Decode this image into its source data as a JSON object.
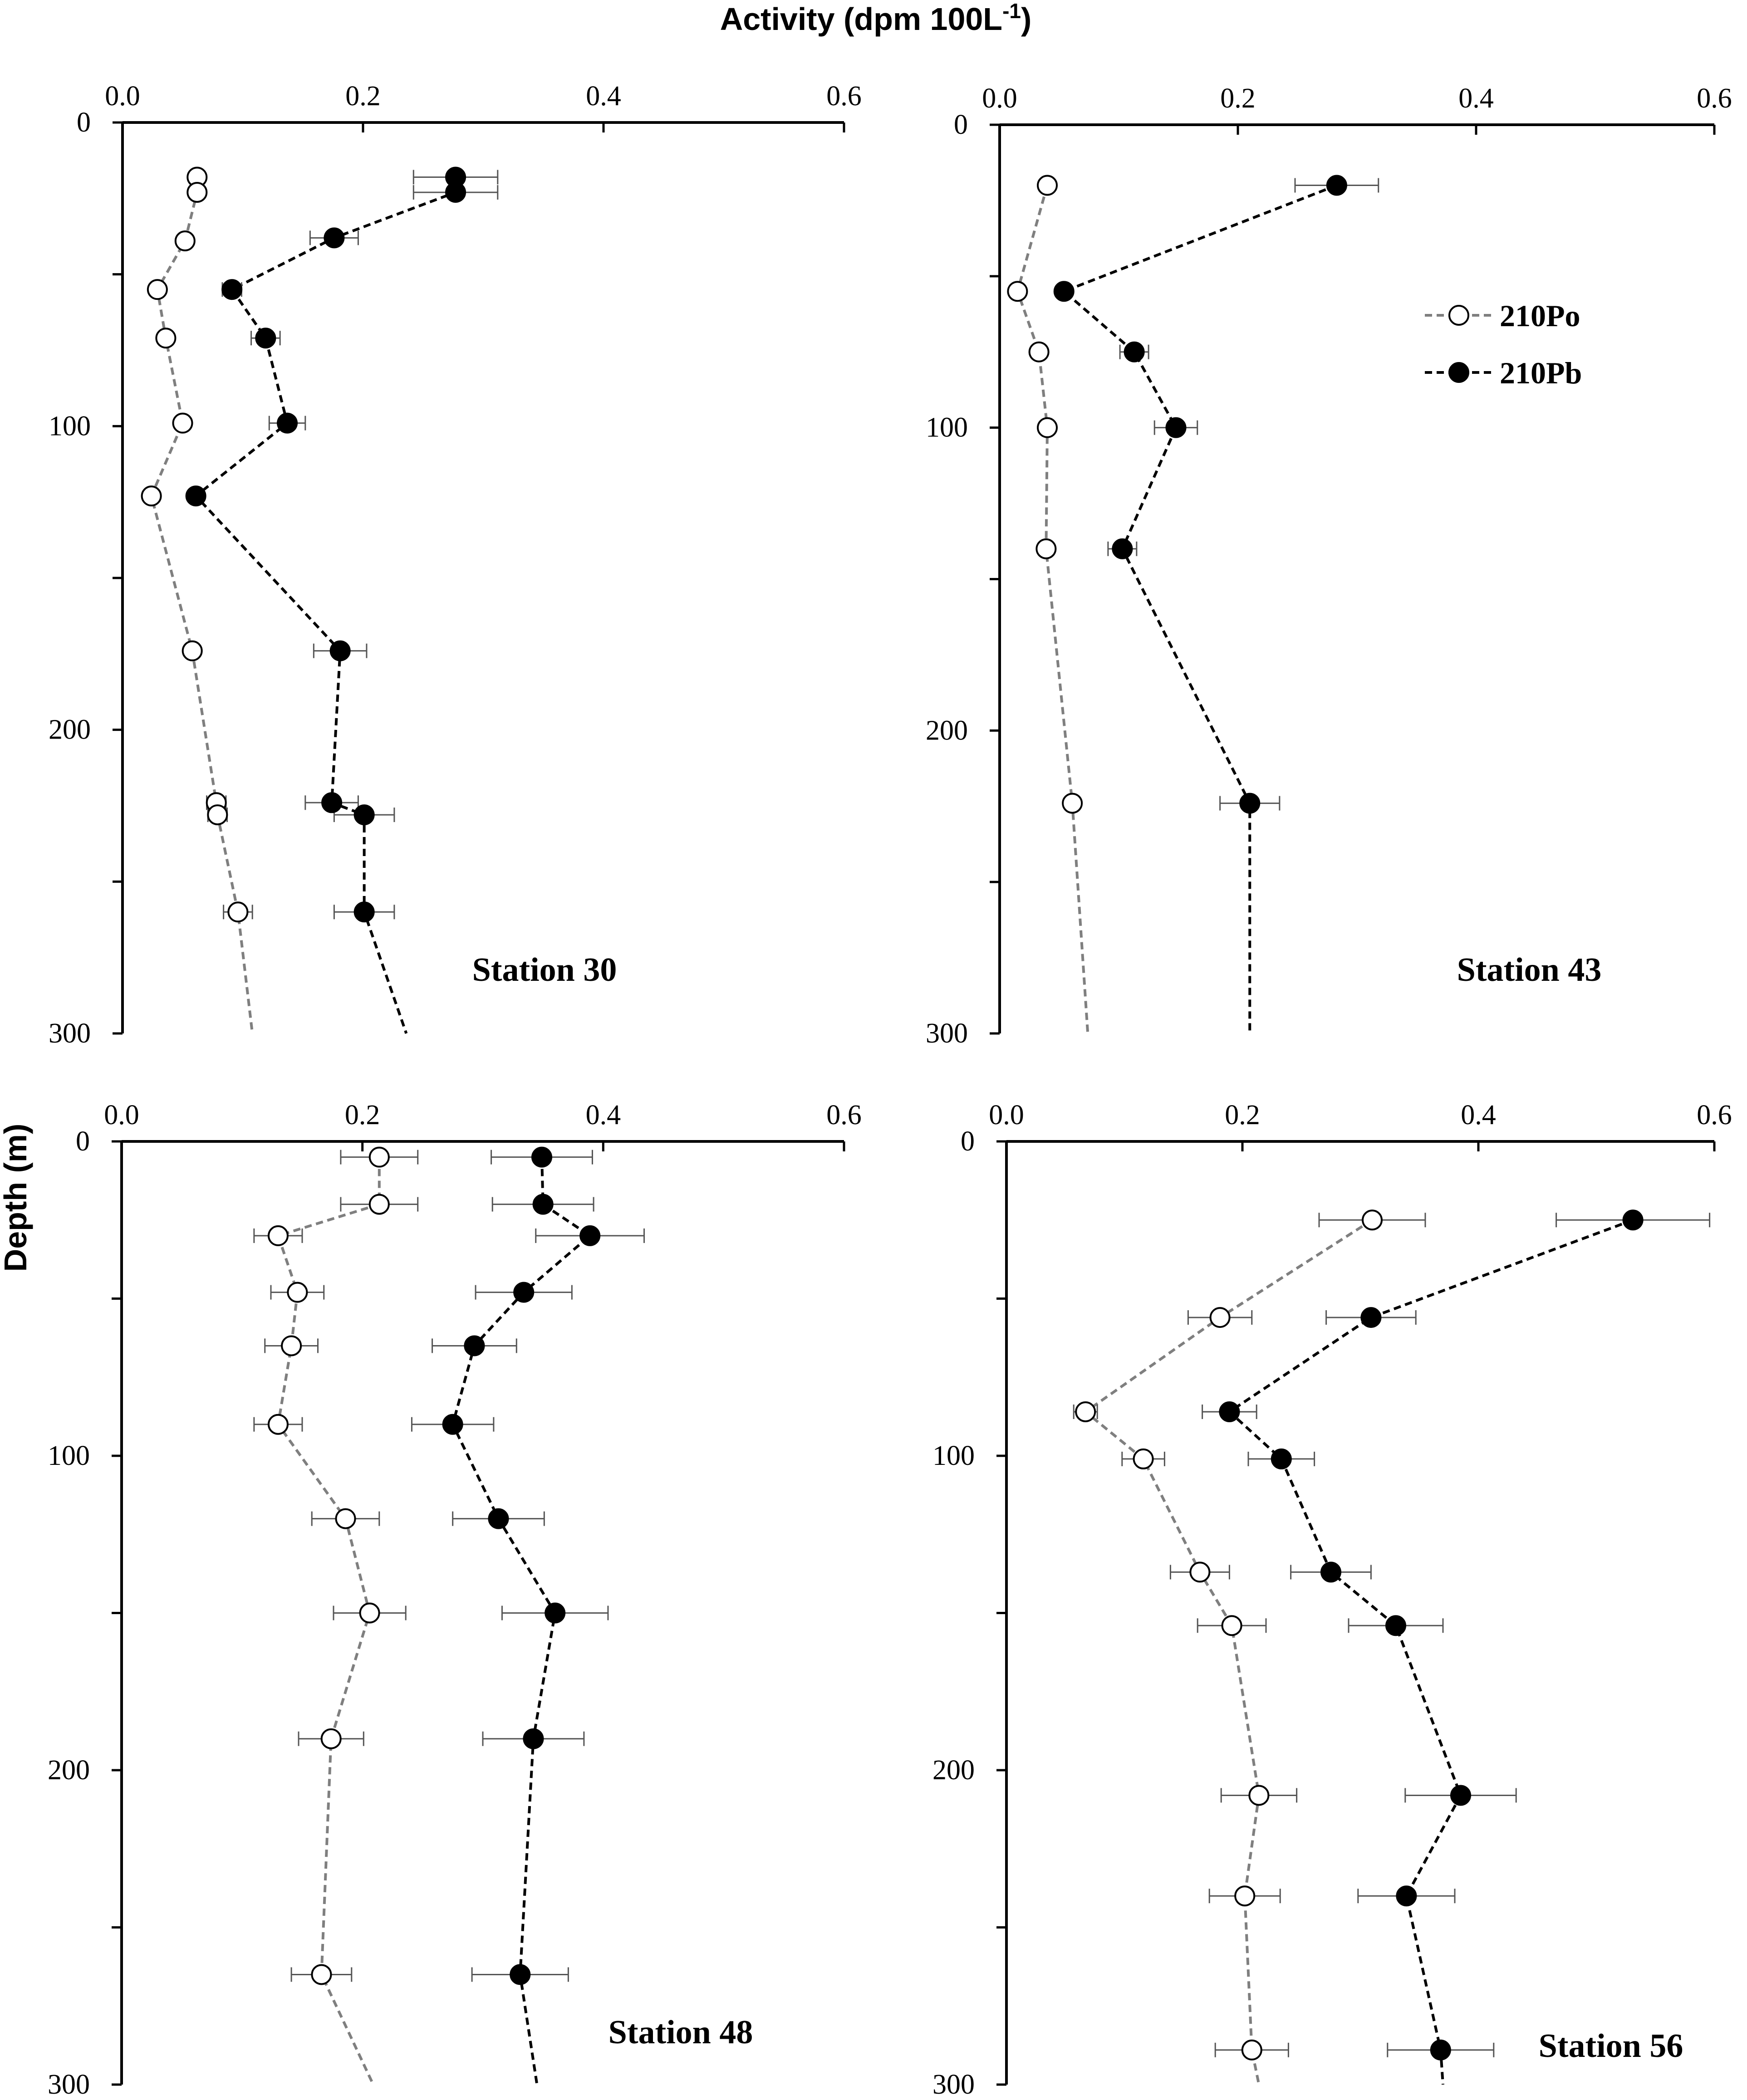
{
  "figure": {
    "x_axis_title": "Activity (dpm 100L",
    "x_axis_title_sup": "-1",
    "x_axis_title_end": ")",
    "y_axis_title": "Depth (m)"
  },
  "legend": {
    "items": [
      {
        "label": "210Po",
        "marker": "open-circle",
        "line_color": "#7f7f7f"
      },
      {
        "label": "210Pb",
        "marker": "filled-circle",
        "line_color": "#000000"
      }
    ]
  },
  "chart_data": [
    {
      "type": "scatter",
      "station": "Station 30",
      "x_ticks": [
        "0.0",
        "0.2",
        "0.4",
        "0.6"
      ],
      "y_ticks": [
        "0",
        "100",
        "200",
        "300"
      ],
      "xlim": [
        0,
        0.6
      ],
      "ylim": [
        0,
        300
      ],
      "y_inverted": true,
      "series": [
        {
          "name": "210Po",
          "points": [
            {
              "x": 0.062,
              "y": 18,
              "err": 0.005
            },
            {
              "x": 0.062,
              "y": 23,
              "err": 0.005
            },
            {
              "x": 0.052,
              "y": 39,
              "err": 0
            },
            {
              "x": 0.029,
              "y": 55,
              "err": 0
            },
            {
              "x": 0.036,
              "y": 71,
              "err": 0
            },
            {
              "x": 0.05,
              "y": 99,
              "err": 0
            },
            {
              "x": 0.024,
              "y": 123,
              "err": 0
            },
            {
              "x": 0.058,
              "y": 174,
              "err": 0
            },
            {
              "x": 0.078,
              "y": 224,
              "err": 0.008
            },
            {
              "x": 0.079,
              "y": 228,
              "err": 0.008
            },
            {
              "x": 0.096,
              "y": 260,
              "err": 0.012
            }
          ],
          "trend_end": {
            "x": 0.108,
            "y": 300
          }
        },
        {
          "name": "210Pb",
          "points": [
            {
              "x": 0.277,
              "y": 18,
              "err": 0.035
            },
            {
              "x": 0.277,
              "y": 23,
              "err": 0.035
            },
            {
              "x": 0.176,
              "y": 38,
              "err": 0.02
            },
            {
              "x": 0.091,
              "y": 55,
              "err": 0.008
            },
            {
              "x": 0.119,
              "y": 71,
              "err": 0.012
            },
            {
              "x": 0.137,
              "y": 99,
              "err": 0.015
            },
            {
              "x": 0.061,
              "y": 123,
              "err": 0
            },
            {
              "x": 0.181,
              "y": 174,
              "err": 0.022
            },
            {
              "x": 0.174,
              "y": 224,
              "err": 0.022
            },
            {
              "x": 0.201,
              "y": 228,
              "err": 0.025
            },
            {
              "x": 0.201,
              "y": 260,
              "err": 0.025
            }
          ],
          "trend_end": {
            "x": 0.236,
            "y": 300
          }
        }
      ]
    },
    {
      "type": "scatter",
      "station": "Station 43",
      "x_ticks": [
        "0.0",
        "0.2",
        "0.4",
        "0.6"
      ],
      "y_ticks": [
        "0",
        "100",
        "200",
        "300"
      ],
      "xlim": [
        0,
        0.6
      ],
      "ylim": [
        0,
        300
      ],
      "y_inverted": true,
      "series": [
        {
          "name": "210Po",
          "points": [
            {
              "x": 0.04,
              "y": 20,
              "err": 0
            },
            {
              "x": 0.015,
              "y": 55,
              "err": 0
            },
            {
              "x": 0.033,
              "y": 75,
              "err": 0
            },
            {
              "x": 0.04,
              "y": 100,
              "err": 0
            },
            {
              "x": 0.039,
              "y": 140,
              "err": 0
            },
            {
              "x": 0.061,
              "y": 224,
              "err": 0
            }
          ],
          "trend_end": {
            "x": 0.074,
            "y": 300
          }
        },
        {
          "name": "210Pb",
          "points": [
            {
              "x": 0.283,
              "y": 20,
              "err": 0.035
            },
            {
              "x": 0.054,
              "y": 55,
              "err": 0
            },
            {
              "x": 0.113,
              "y": 75,
              "err": 0.012
            },
            {
              "x": 0.148,
              "y": 100,
              "err": 0.018
            },
            {
              "x": 0.103,
              "y": 140,
              "err": 0.012
            },
            {
              "x": 0.21,
              "y": 224,
              "err": 0.025
            }
          ],
          "trend_end": {
            "x": 0.21,
            "y": 300
          }
        }
      ]
    },
    {
      "type": "scatter",
      "station": "Station 48",
      "x_ticks": [
        "0.0",
        "0.2",
        "0.4",
        "0.6"
      ],
      "y_ticks": [
        "0",
        "100",
        "200",
        "300"
      ],
      "xlim": [
        0,
        0.6
      ],
      "ylim": [
        0,
        300
      ],
      "y_inverted": true,
      "series": [
        {
          "name": "210Po",
          "points": [
            {
              "x": 0.214,
              "y": 5,
              "err": 0.032
            },
            {
              "x": 0.214,
              "y": 20,
              "err": 0.032
            },
            {
              "x": 0.13,
              "y": 30,
              "err": 0.02
            },
            {
              "x": 0.146,
              "y": 48,
              "err": 0.022
            },
            {
              "x": 0.141,
              "y": 65,
              "err": 0.022
            },
            {
              "x": 0.13,
              "y": 90,
              "err": 0.02
            },
            {
              "x": 0.186,
              "y": 120,
              "err": 0.028
            },
            {
              "x": 0.206,
              "y": 150,
              "err": 0.03
            },
            {
              "x": 0.174,
              "y": 190,
              "err": 0.027
            },
            {
              "x": 0.166,
              "y": 265,
              "err": 0.025
            }
          ],
          "trend_end": {
            "x": 0.209,
            "y": 300
          }
        },
        {
          "name": "210Pb",
          "points": [
            {
              "x": 0.349,
              "y": 5,
              "err": 0.042
            },
            {
              "x": 0.35,
              "y": 20,
              "err": 0.042
            },
            {
              "x": 0.389,
              "y": 30,
              "err": 0.045
            },
            {
              "x": 0.334,
              "y": 48,
              "err": 0.04
            },
            {
              "x": 0.293,
              "y": 65,
              "err": 0.035
            },
            {
              "x": 0.275,
              "y": 90,
              "err": 0.034
            },
            {
              "x": 0.313,
              "y": 120,
              "err": 0.038
            },
            {
              "x": 0.36,
              "y": 150,
              "err": 0.044
            },
            {
              "x": 0.342,
              "y": 190,
              "err": 0.042
            },
            {
              "x": 0.331,
              "y": 265,
              "err": 0.04
            }
          ],
          "trend_end": {
            "x": 0.345,
            "y": 300
          }
        }
      ]
    },
    {
      "type": "scatter",
      "station": "Station 56",
      "x_ticks": [
        "0.0",
        "0.2",
        "0.4",
        "0.6"
      ],
      "y_ticks": [
        "0",
        "100",
        "200",
        "300"
      ],
      "xlim": [
        0,
        0.6
      ],
      "ylim": [
        0,
        300
      ],
      "y_inverted": true,
      "series": [
        {
          "name": "210Po",
          "points": [
            {
              "x": 0.31,
              "y": 25,
              "err": 0.045
            },
            {
              "x": 0.181,
              "y": 56,
              "err": 0.027
            },
            {
              "x": 0.067,
              "y": 86,
              "err": 0.01
            },
            {
              "x": 0.116,
              "y": 101,
              "err": 0.018
            },
            {
              "x": 0.164,
              "y": 137,
              "err": 0.025
            },
            {
              "x": 0.191,
              "y": 154,
              "err": 0.029
            },
            {
              "x": 0.214,
              "y": 208,
              "err": 0.032
            },
            {
              "x": 0.202,
              "y": 240,
              "err": 0.03
            },
            {
              "x": 0.208,
              "y": 289,
              "err": 0.031
            }
          ],
          "trend_end": {
            "x": 0.214,
            "y": 300
          }
        },
        {
          "name": "210Pb",
          "points": [
            {
              "x": 0.531,
              "y": 25,
              "err": 0.065
            },
            {
              "x": 0.309,
              "y": 56,
              "err": 0.038
            },
            {
              "x": 0.189,
              "y": 86,
              "err": 0.023
            },
            {
              "x": 0.233,
              "y": 101,
              "err": 0.028
            },
            {
              "x": 0.275,
              "y": 137,
              "err": 0.034
            },
            {
              "x": 0.33,
              "y": 154,
              "err": 0.04
            },
            {
              "x": 0.385,
              "y": 208,
              "err": 0.047
            },
            {
              "x": 0.339,
              "y": 240,
              "err": 0.041
            },
            {
              "x": 0.368,
              "y": 289,
              "err": 0.045
            }
          ],
          "trend_end": {
            "x": 0.37,
            "y": 300
          }
        }
      ]
    }
  ]
}
